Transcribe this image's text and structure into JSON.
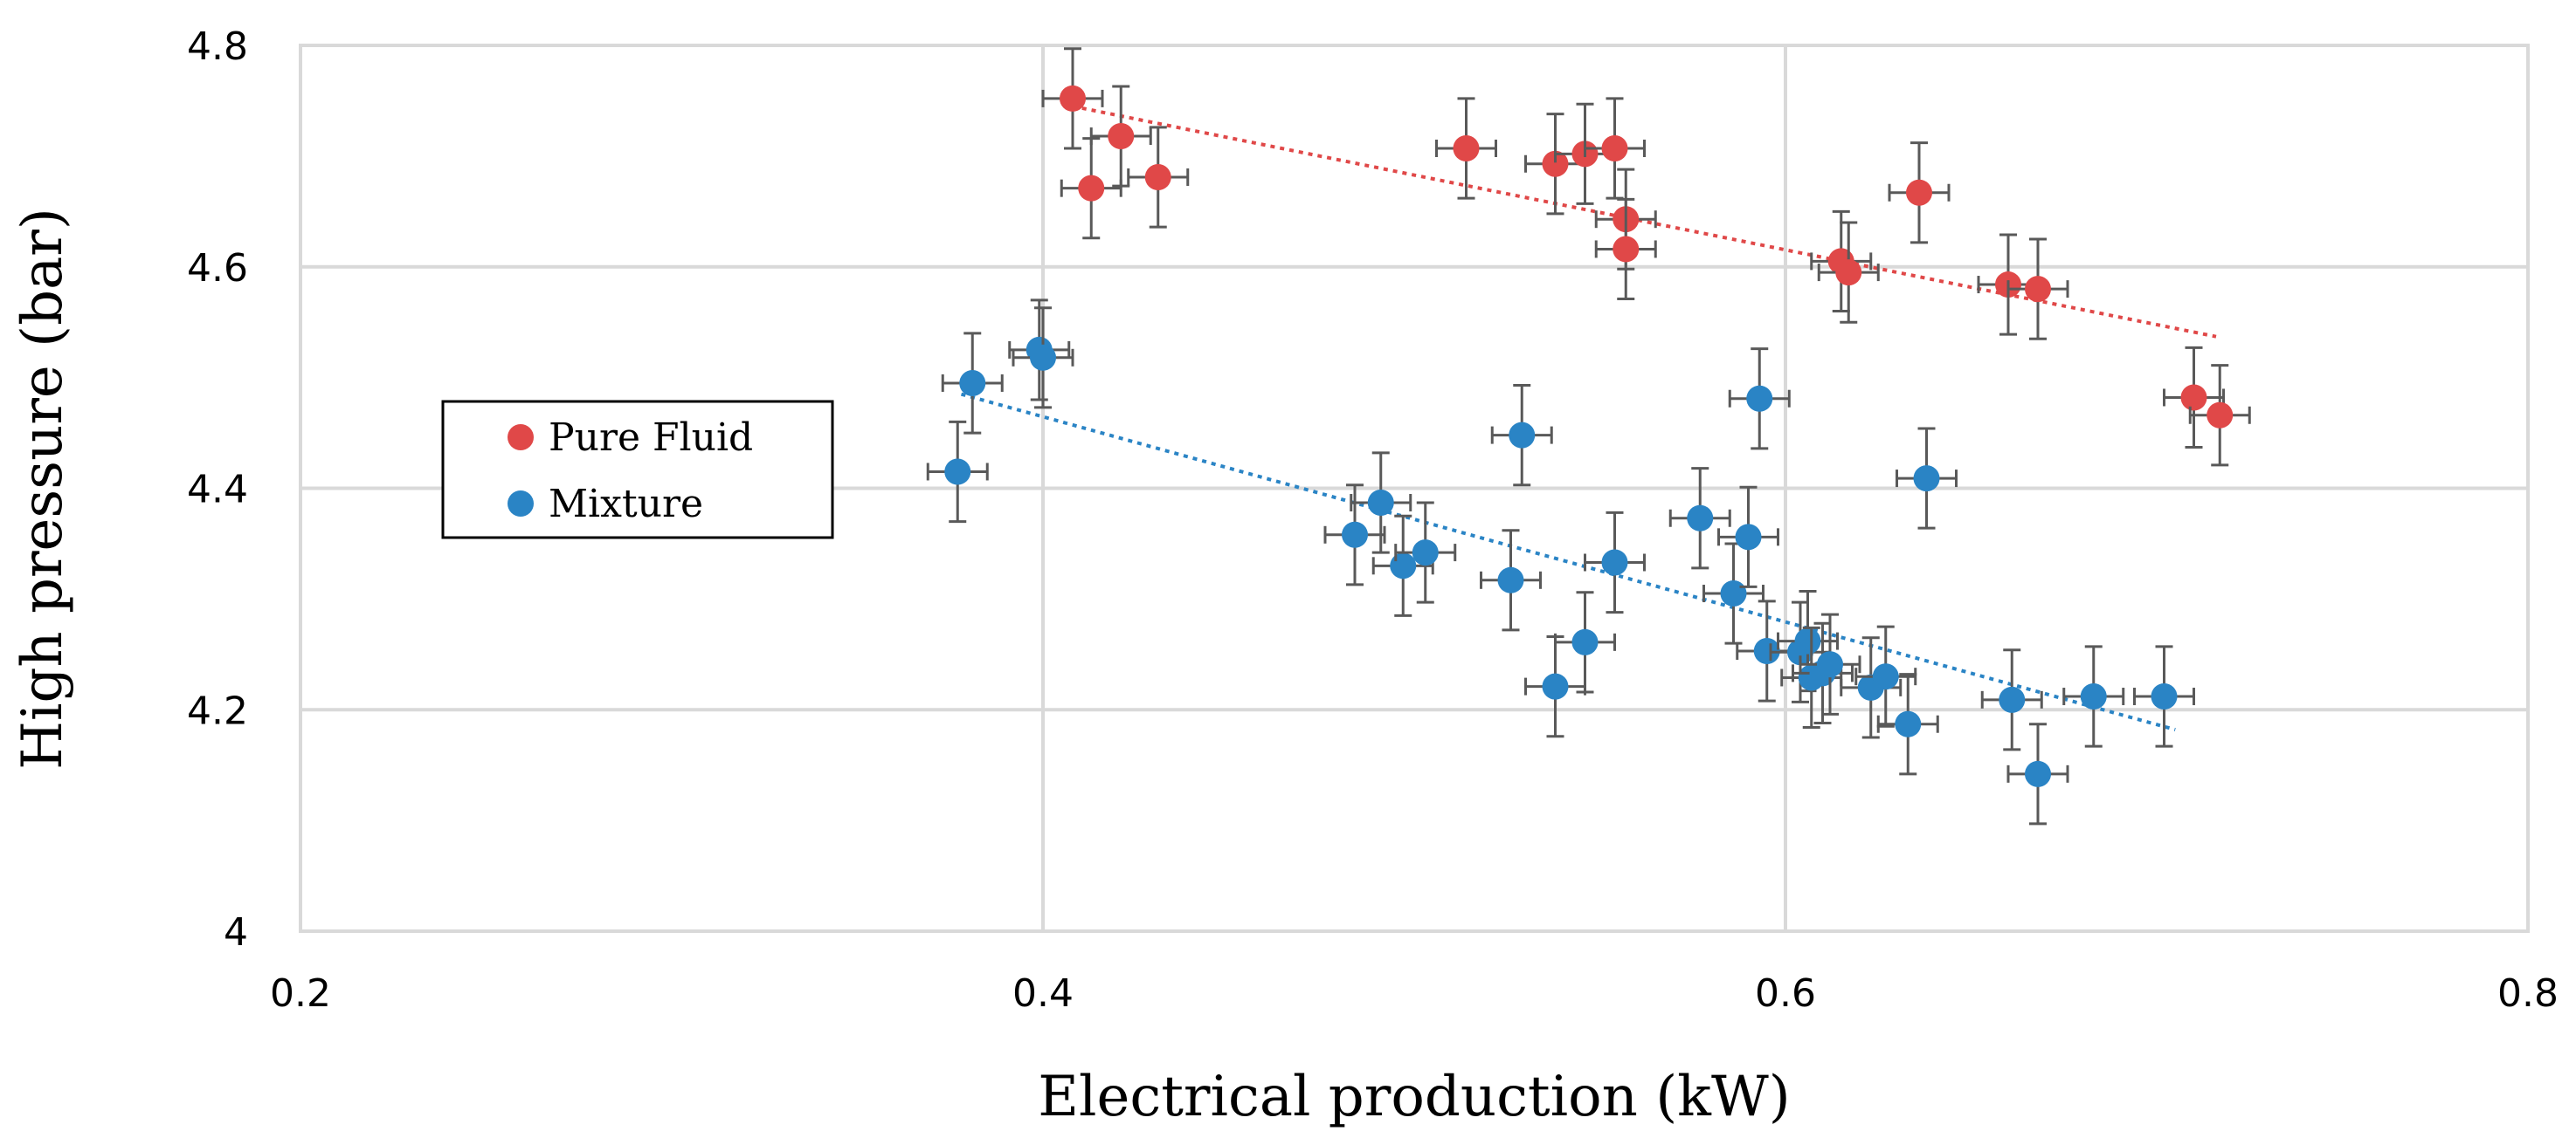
{
  "chart_data": {
    "type": "scatter",
    "title": "",
    "xlabel": "Electrical production (kW)",
    "ylabel": "High pressure (bar)",
    "xlim": [
      0.2,
      0.8
    ],
    "ylim": [
      4,
      4.8
    ],
    "xticks": [
      0.2,
      0.4,
      0.6,
      0.8
    ],
    "yticks": [
      4,
      4.2,
      4.4,
      4.6,
      4.8
    ],
    "xtick_labels": [
      "0.2",
      "0.4",
      "0.6",
      "0.8"
    ],
    "ytick_labels": [
      "4",
      "4.2",
      "4.4",
      "4.6",
      "4.8"
    ],
    "grid": true,
    "legend_position": "middle-left",
    "error_bars": {
      "x": 0.008,
      "y": 0.045
    },
    "series": [
      {
        "name": "Pure Fluid",
        "color": "#e04848",
        "trendline": {
          "style": "dotted",
          "x_start": 0.408,
          "y_start": 4.745,
          "x_end": 0.716,
          "y_end": 4.537
        },
        "points": [
          [
            0.408,
            4.752
          ],
          [
            0.413,
            4.671
          ],
          [
            0.421,
            4.718
          ],
          [
            0.431,
            4.681
          ],
          [
            0.514,
            4.707
          ],
          [
            0.538,
            4.693
          ],
          [
            0.546,
            4.702
          ],
          [
            0.554,
            4.707
          ],
          [
            0.557,
            4.643
          ],
          [
            0.557,
            4.616
          ],
          [
            0.615,
            4.605
          ],
          [
            0.617,
            4.595
          ],
          [
            0.636,
            4.667
          ],
          [
            0.66,
            4.584
          ],
          [
            0.668,
            4.58
          ],
          [
            0.71,
            4.482
          ],
          [
            0.717,
            4.466
          ]
        ]
      },
      {
        "name": "Mixture",
        "color": "#2a84c5",
        "trendline": {
          "style": "dotted",
          "x_start": 0.378,
          "y_start": 4.485,
          "x_end": 0.705,
          "y_end": 4.182
        },
        "points": [
          [
            0.377,
            4.415
          ],
          [
            0.381,
            4.495
          ],
          [
            0.399,
            4.525
          ],
          [
            0.4,
            4.518
          ],
          [
            0.484,
            4.358
          ],
          [
            0.491,
            4.387
          ],
          [
            0.497,
            4.33
          ],
          [
            0.503,
            4.342
          ],
          [
            0.526,
            4.317
          ],
          [
            0.529,
            4.448
          ],
          [
            0.538,
            4.221
          ],
          [
            0.546,
            4.261
          ],
          [
            0.554,
            4.333
          ],
          [
            0.577,
            4.373
          ],
          [
            0.586,
            4.305
          ],
          [
            0.59,
            4.356
          ],
          [
            0.593,
            4.481
          ],
          [
            0.595,
            4.253
          ],
          [
            0.604,
            4.252
          ],
          [
            0.606,
            4.262
          ],
          [
            0.607,
            4.229
          ],
          [
            0.61,
            4.233
          ],
          [
            0.612,
            4.241
          ],
          [
            0.623,
            4.22
          ],
          [
            0.627,
            4.23
          ],
          [
            0.633,
            4.187
          ],
          [
            0.638,
            4.409
          ],
          [
            0.661,
            4.209
          ],
          [
            0.668,
            4.142
          ],
          [
            0.683,
            4.212
          ],
          [
            0.702,
            4.212
          ]
        ]
      }
    ]
  }
}
